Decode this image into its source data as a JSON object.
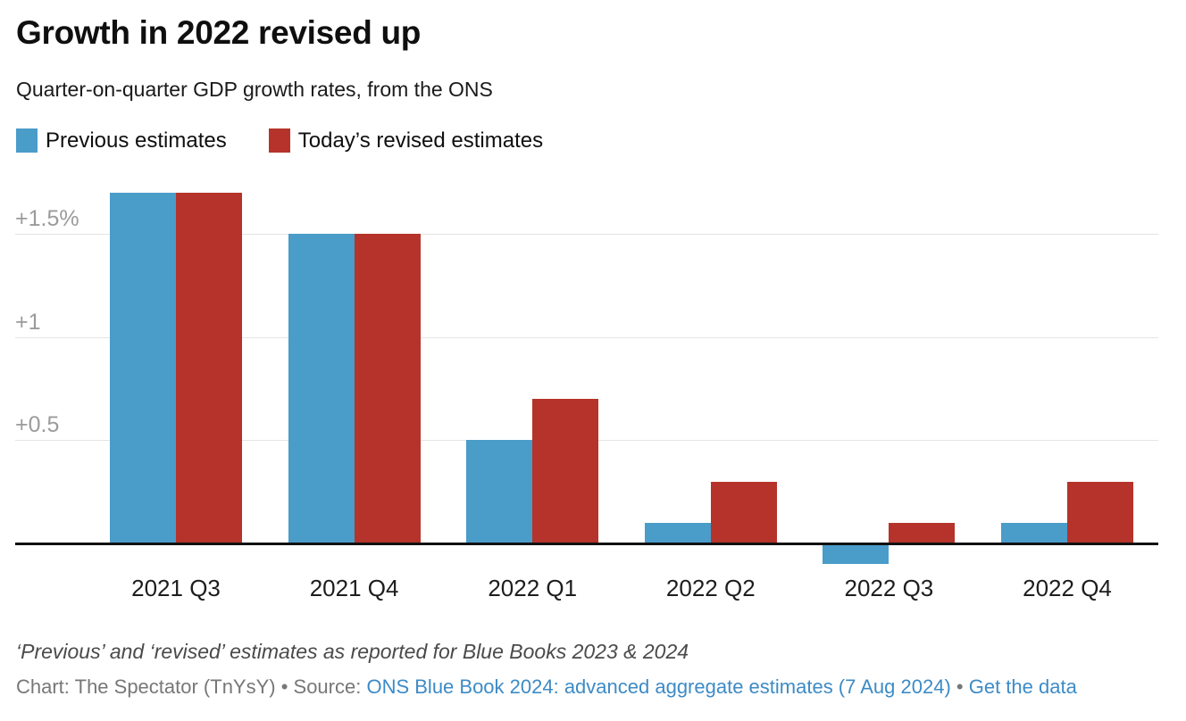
{
  "header": {
    "title": "Growth in 2022 revised up",
    "subtitle": "Quarter-on-quarter GDP growth rates, from the ONS"
  },
  "legend": {
    "items": [
      {
        "label": "Previous estimates",
        "color": "#4a9cc9"
      },
      {
        "label": "Today’s revised estimates",
        "color": "#b5332a"
      }
    ]
  },
  "chart_data": {
    "type": "bar",
    "title": "Growth in 2022 revised up",
    "subtitle": "Quarter-on-quarter GDP growth rates, from the ONS",
    "categories": [
      "2021 Q3",
      "2021 Q4",
      "2022 Q1",
      "2022 Q2",
      "2022 Q3",
      "2022 Q4"
    ],
    "series": [
      {
        "name": "Previous estimates",
        "color": "#4a9cc9",
        "values": [
          1.7,
          1.5,
          0.5,
          0.1,
          -0.1,
          0.1
        ]
      },
      {
        "name": "Today’s revised estimates",
        "color": "#b5332a",
        "values": [
          1.7,
          1.5,
          0.7,
          0.3,
          0.1,
          0.3
        ]
      }
    ],
    "unit": "%",
    "y_ticks": [
      {
        "value": 0.5,
        "label": "+0.5"
      },
      {
        "value": 1,
        "label": "+1"
      },
      {
        "value": 1.5,
        "label": "+1.5%"
      }
    ],
    "ylim": [
      -0.2,
      1.77
    ],
    "xlabel": "",
    "ylabel": "",
    "grid": true,
    "legend_position": "top",
    "baseline": 0
  },
  "colors": {
    "axis_line": "#111111",
    "gridline": "#e4e4e4",
    "tick_label": "#9b9b9b"
  },
  "footer": {
    "note": "‘Previous’ and ‘revised’ estimates as reported for Blue Books 2023 & 2024",
    "credit_prefix": "Chart: The Spectator (TnYsY) • Source: ",
    "source_link_label": "ONS Blue Book 2024: advanced aggregate estimates (7 Aug 2024)",
    "separator": " • ",
    "data_link_label": "Get the data",
    "link_color": "#3d8bc6"
  }
}
